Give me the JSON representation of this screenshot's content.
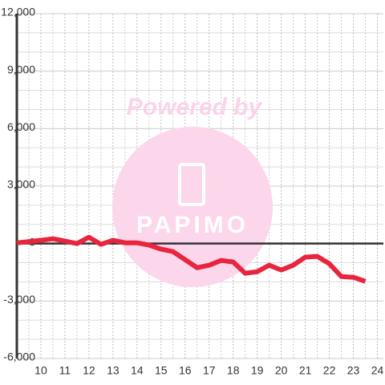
{
  "chart_data": {
    "type": "line",
    "watermark": {
      "line1": "Powered by",
      "line2": "PAPIMO"
    },
    "x": [
      9,
      9.5,
      10,
      10.5,
      11,
      11.5,
      12,
      12.5,
      13,
      13.5,
      14,
      14.5,
      15,
      15.5,
      16,
      16.5,
      17,
      17.5,
      18,
      18.5,
      19,
      19.5,
      20,
      20.5,
      21,
      21.5,
      22,
      22.5,
      23,
      23.5
    ],
    "series": [
      {
        "color": "#e8253f",
        "values": [
          40,
          100,
          170,
          250,
          130,
          0,
          330,
          -40,
          170,
          40,
          40,
          -80,
          -290,
          -420,
          -840,
          -1260,
          -1130,
          -880,
          -960,
          -1550,
          -1470,
          -1130,
          -1380,
          -1130,
          -710,
          -670,
          -1050,
          -1720,
          -1760,
          -1970
        ]
      }
    ],
    "xlim": [
      9,
      24.25
    ],
    "xticks": [
      10,
      11,
      12,
      13,
      14,
      15,
      16,
      17,
      18,
      19,
      20,
      21,
      22,
      23,
      24
    ],
    "ylim": [
      -6000,
      12000
    ],
    "yticks": [
      {
        "value": -6000,
        "label": "-6,000"
      },
      {
        "value": -3000,
        "label": "-3,000"
      },
      0,
      {
        "value": 3000,
        "label": "3,000"
      },
      {
        "value": 6000,
        "label": "6,000"
      },
      {
        "value": 9000,
        "label": "9,000"
      },
      {
        "value": 12000,
        "label": "12,000"
      }
    ],
    "grid": true
  }
}
